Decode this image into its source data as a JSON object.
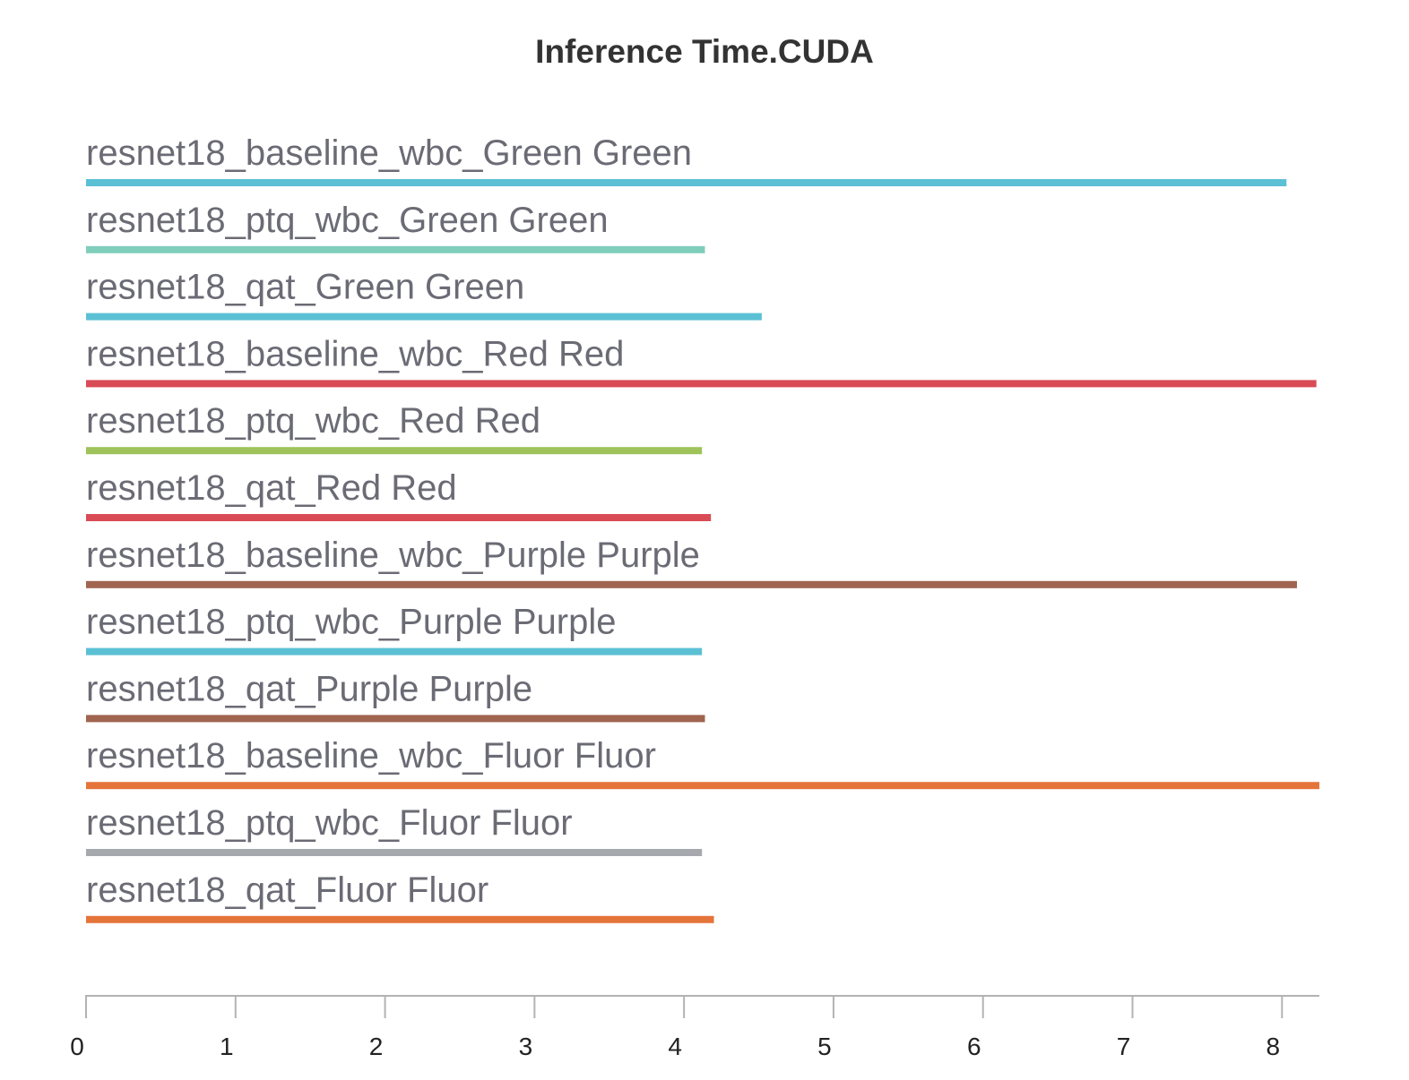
{
  "chart_data": {
    "type": "bar",
    "orientation": "horizontal",
    "title": "Inference Time.CUDA",
    "xlabel": "",
    "ylabel": "",
    "xlim": [
      0,
      8.25
    ],
    "x_ticks": [
      "0",
      "1",
      "2",
      "3",
      "4",
      "5",
      "6",
      "7",
      "8"
    ],
    "grid": false,
    "categories": [
      "resnet18_baseline_wbc_Green Green",
      "resnet18_ptq_wbc_Green Green",
      "resnet18_qat_Green Green",
      "resnet18_baseline_wbc_Red Red",
      "resnet18_ptq_wbc_Red Red",
      "resnet18_qat_Red Red",
      "resnet18_baseline_wbc_Purple Purple",
      "resnet18_ptq_wbc_Purple Purple",
      "resnet18_qat_Purple Purple",
      "resnet18_baseline_wbc_Fluor Fluor",
      "resnet18_ptq_wbc_Fluor Fluor",
      "resnet18_qat_Fluor Fluor"
    ],
    "values": [
      8.03,
      4.14,
      4.52,
      8.23,
      4.12,
      4.18,
      8.1,
      4.12,
      4.14,
      8.25,
      4.12,
      4.2
    ],
    "colors": [
      "#5bc0d4",
      "#7fcdbb",
      "#5bc0d4",
      "#d94b55",
      "#9dc35a",
      "#d94b55",
      "#a0644f",
      "#5bc0d4",
      "#a0644f",
      "#e5743b",
      "#a5a9ad",
      "#e5743b"
    ]
  }
}
